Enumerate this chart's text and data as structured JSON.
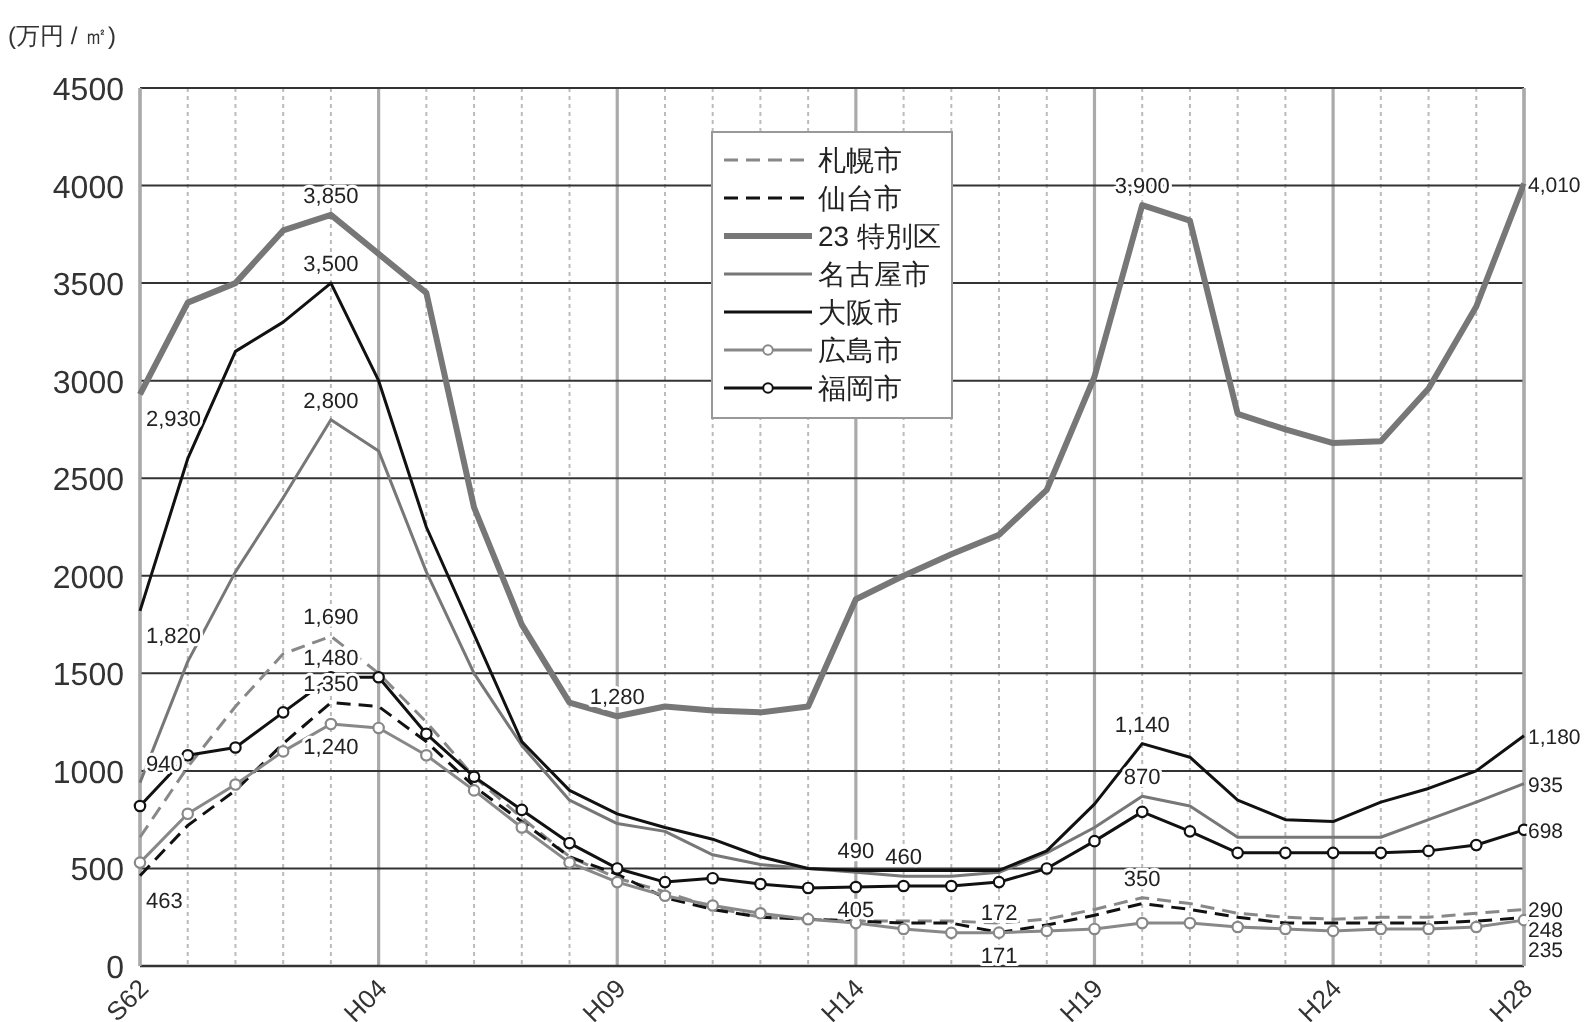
{
  "chart_data": {
    "type": "line",
    "ylabel": "(万円 / ㎡)",
    "categories": [
      "S62",
      null,
      null,
      null,
      null,
      "H04",
      null,
      null,
      null,
      null,
      "H09",
      null,
      null,
      null,
      null,
      "H14",
      null,
      null,
      null,
      null,
      "H19",
      null,
      null,
      null,
      null,
      "H24",
      null,
      null,
      null,
      "H28"
    ],
    "ylim": [
      0,
      4500
    ],
    "yticks": [
      0,
      500,
      1000,
      1500,
      2000,
      2500,
      3000,
      3500,
      4000,
      4500
    ],
    "grid": true,
    "legend": "top",
    "series": [
      {
        "name": "札幌市",
        "color": "#888888",
        "line_style": "dashed",
        "marker": "none",
        "values": [
          660,
          1020,
          1330,
          1600,
          1690,
          1500,
          1250,
          970,
          760,
          560,
          450,
          380,
          300,
          250,
          240,
          230,
          230,
          230,
          220,
          240,
          290,
          350,
          320,
          270,
          250,
          240,
          250,
          250,
          270,
          290
        ],
        "value_labels": [
          null,
          null,
          null,
          null,
          "1,690",
          null,
          null,
          null,
          null,
          null,
          null,
          null,
          null,
          null,
          null,
          null,
          null,
          null,
          null,
          null,
          null,
          "350",
          null,
          null,
          null,
          null,
          null,
          null,
          null,
          "290"
        ]
      },
      {
        "name": "仙台市",
        "color": "#111111",
        "line_style": "dashed",
        "marker": "none",
        "values": [
          463,
          720,
          900,
          1140,
          1350,
          1330,
          1150,
          920,
          740,
          560,
          470,
          350,
          290,
          250,
          240,
          230,
          220,
          220,
          172,
          210,
          260,
          320,
          290,
          250,
          220,
          220,
          220,
          220,
          230,
          248
        ],
        "value_labels": [
          "463",
          null,
          null,
          null,
          "1,350",
          null,
          null,
          null,
          null,
          null,
          null,
          null,
          null,
          null,
          null,
          null,
          null,
          null,
          "172",
          null,
          null,
          null,
          null,
          null,
          null,
          null,
          null,
          null,
          null,
          "248"
        ]
      },
      {
        "name": "23 特別区",
        "color": "#777777",
        "line_style": "solid",
        "marker": "none",
        "values": [
          2930,
          3400,
          3500,
          3770,
          3850,
          3650,
          3450,
          2350,
          1750,
          1350,
          1280,
          1330,
          1310,
          1300,
          1330,
          1880,
          2000,
          2110,
          2210,
          2440,
          3020,
          3900,
          3820,
          2830,
          2750,
          2680,
          2690,
          2960,
          3380,
          4010
        ],
        "value_labels": [
          "2,930",
          null,
          null,
          null,
          "3,850",
          null,
          null,
          null,
          null,
          null,
          "1,280",
          null,
          null,
          null,
          null,
          null,
          null,
          null,
          null,
          null,
          null,
          "3,900",
          null,
          null,
          null,
          null,
          null,
          null,
          null,
          "4,010"
        ]
      },
      {
        "name": "名古屋市",
        "color": "#777777",
        "line_style": "solid",
        "marker": "none",
        "values": [
          940,
          1560,
          2020,
          2400,
          2800,
          2640,
          2020,
          1500,
          1130,
          850,
          730,
          690,
          570,
          520,
          500,
          480,
          460,
          460,
          480,
          580,
          710,
          870,
          820,
          660,
          660,
          660,
          660,
          750,
          840,
          935
        ],
        "value_labels": [
          "940",
          null,
          null,
          null,
          "2,800",
          null,
          null,
          null,
          null,
          null,
          null,
          null,
          null,
          null,
          null,
          null,
          "460",
          null,
          null,
          null,
          null,
          "870",
          null,
          null,
          null,
          null,
          null,
          null,
          null,
          "935"
        ]
      },
      {
        "name": "大阪市",
        "color": "#111111",
        "line_style": "solid",
        "marker": "none",
        "values": [
          1820,
          2600,
          3150,
          3300,
          3500,
          3000,
          2250,
          1700,
          1150,
          900,
          780,
          710,
          650,
          560,
          500,
          490,
          490,
          490,
          490,
          590,
          830,
          1140,
          1070,
          850,
          750,
          740,
          840,
          910,
          1000,
          1180
        ],
        "value_labels": [
          "1,820",
          null,
          null,
          null,
          "3,500",
          null,
          null,
          null,
          null,
          null,
          null,
          null,
          null,
          null,
          null,
          "490",
          null,
          null,
          null,
          null,
          null,
          "1,140",
          null,
          null,
          null,
          null,
          null,
          null,
          null,
          "1,180"
        ]
      },
      {
        "name": "広島市",
        "color": "#888888",
        "line_style": "solid",
        "marker": "circle",
        "values": [
          530,
          780,
          930,
          1100,
          1240,
          1220,
          1080,
          900,
          710,
          530,
          430,
          360,
          310,
          270,
          240,
          220,
          190,
          170,
          171,
          180,
          190,
          220,
          220,
          200,
          190,
          180,
          190,
          190,
          200,
          235
        ],
        "value_labels": [
          null,
          null,
          null,
          null,
          "1,240",
          null,
          null,
          null,
          null,
          null,
          null,
          null,
          null,
          null,
          null,
          null,
          null,
          null,
          "171",
          null,
          null,
          null,
          null,
          null,
          null,
          null,
          null,
          null,
          null,
          "235"
        ]
      },
      {
        "name": "福岡市",
        "color": "#111111",
        "line_style": "solid",
        "marker": "circle",
        "values": [
          820,
          1080,
          1120,
          1300,
          1480,
          1480,
          1190,
          970,
          800,
          630,
          500,
          430,
          450,
          420,
          400,
          405,
          410,
          410,
          430,
          500,
          640,
          790,
          690,
          580,
          580,
          580,
          580,
          590,
          620,
          698
        ],
        "value_labels": [
          null,
          null,
          null,
          null,
          "1,480",
          null,
          null,
          null,
          null,
          null,
          null,
          null,
          null,
          null,
          null,
          "405",
          null,
          null,
          null,
          null,
          null,
          null,
          null,
          null,
          null,
          null,
          null,
          null,
          null,
          "698"
        ]
      }
    ]
  }
}
